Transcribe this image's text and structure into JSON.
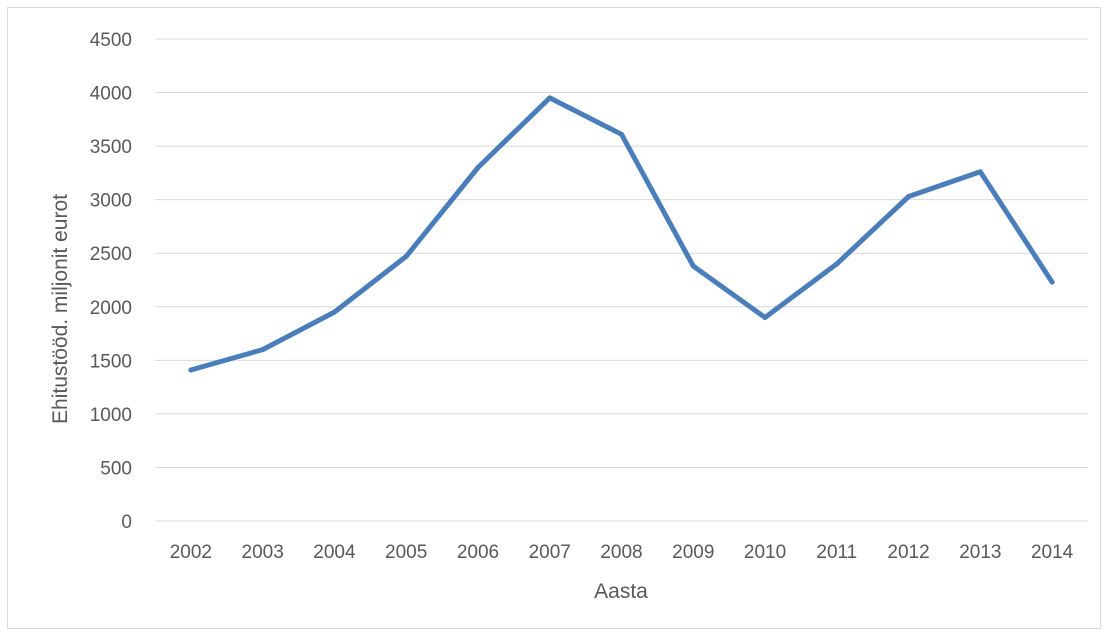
{
  "chart_data": {
    "type": "line",
    "title": "",
    "xlabel": "Aasta",
    "ylabel": "Ehitustööd. miljonit eurot",
    "x": [
      "2002",
      "2003",
      "2004",
      "2005",
      "2006",
      "2007",
      "2008",
      "2009",
      "2010",
      "2011",
      "2012",
      "2013",
      "2014"
    ],
    "series": [
      {
        "values": [
          1410,
          1600,
          1950,
          2470,
          3300,
          3950,
          3610,
          2380,
          1900,
          2400,
          3030,
          3260,
          2230
        ]
      }
    ],
    "ylim": [
      0,
      4500
    ],
    "yticks": [
      "0",
      "500",
      "1000",
      "1500",
      "2000",
      "2500",
      "3000",
      "3500",
      "4000",
      "4500"
    ],
    "grid": true,
    "legend": "none",
    "colors": {
      "line": "#4a7ebb",
      "grid": "#d9d9d9",
      "text": "#595959"
    }
  }
}
